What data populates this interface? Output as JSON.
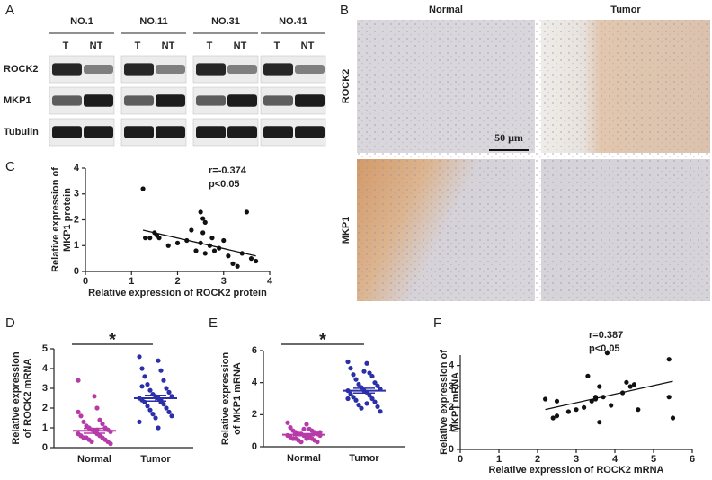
{
  "blot": {
    "label": "A",
    "samples": [
      "NO.1",
      "NO.11",
      "NO.31",
      "NO.41"
    ],
    "lanes": [
      "T",
      "NT"
    ],
    "rows": [
      "ROCK2",
      "MKP1",
      "Tubulin"
    ]
  },
  "histology": {
    "label": "B",
    "columns": [
      "Normal",
      "Tumor"
    ],
    "rows": [
      "ROCK2",
      "MKP1"
    ],
    "scale_bar": "50 μm"
  },
  "chart_data": [
    {
      "type": "scatter",
      "label": "C",
      "xlabel": "Relative expression of ROCK2 protein",
      "ylabel": [
        "Relative expression of",
        "MKP1 protein"
      ],
      "annotations": [
        "r=-0.374",
        "p<0.05"
      ],
      "xlim": [
        0,
        4
      ],
      "ylim": [
        0,
        4
      ],
      "xticks": [
        0,
        1,
        2,
        3,
        4
      ],
      "yticks": [
        0,
        1,
        2,
        3,
        4
      ],
      "color": "#111111",
      "x": [
        1.25,
        1.3,
        1.4,
        1.5,
        1.6,
        1.55,
        1.8,
        2.0,
        2.2,
        2.3,
        2.5,
        2.55,
        2.55,
        2.5,
        2.6,
        2.6,
        2.7,
        2.75,
        2.8,
        2.9,
        3.0,
        3.1,
        3.2,
        3.3,
        3.4,
        3.5,
        3.6,
        3.7,
        2.4
      ],
      "values": [
        3.2,
        1.3,
        1.3,
        1.5,
        1.3,
        1.4,
        1.0,
        1.1,
        1.2,
        1.6,
        2.3,
        2.05,
        1.5,
        1.1,
        1.9,
        0.7,
        1.0,
        1.3,
        0.8,
        0.9,
        1.2,
        0.6,
        0.3,
        0.2,
        0.7,
        2.3,
        0.5,
        0.4,
        0.8
      ],
      "fit": {
        "x": [
          1.25,
          3.7
        ],
        "y": [
          1.6,
          0.6
        ]
      }
    },
    {
      "type": "dot",
      "label": "D",
      "ylabel": [
        "Relative expression",
        "of ROCK2 mRNA"
      ],
      "significance": "*",
      "ylim": [
        0,
        5
      ],
      "yticks": [
        0,
        1,
        2,
        3,
        4,
        5
      ],
      "series": [
        {
          "name": "Normal",
          "color": "#b63aa8",
          "mean": 0.85,
          "sem": 0.12,
          "values": [
            3.4,
            2.0,
            1.6,
            1.4,
            1.3,
            1.2,
            1.1,
            1.0,
            1.0,
            0.9,
            0.9,
            0.8,
            0.8,
            0.7,
            0.7,
            0.6,
            0.6,
            0.5,
            0.5,
            0.5,
            0.4,
            0.4,
            0.3,
            0.3,
            0.2,
            2.6,
            1.8,
            0.9,
            0.6
          ]
        },
        {
          "name": "Tumor",
          "color": "#2b2fa8",
          "mean": 2.5,
          "sem": 0.15,
          "values": [
            4.6,
            4.4,
            4.0,
            3.9,
            3.6,
            3.4,
            3.2,
            3.0,
            2.9,
            2.8,
            2.7,
            2.6,
            2.6,
            2.5,
            2.5,
            2.4,
            2.4,
            2.3,
            2.2,
            2.1,
            2.0,
            1.9,
            1.8,
            1.7,
            1.6,
            1.5,
            1.3,
            1.0,
            3.1,
            2.3
          ]
        }
      ]
    },
    {
      "type": "dot",
      "label": "E",
      "ylabel": [
        "Relative expression",
        "of MKP1 mRNA"
      ],
      "significance": "*",
      "ylim": [
        0,
        6
      ],
      "yticks": [
        0,
        2,
        4,
        6
      ],
      "series": [
        {
          "name": "Normal",
          "color": "#b63aa8",
          "mean": 0.75,
          "sem": 0.06,
          "values": [
            1.5,
            1.4,
            1.2,
            1.1,
            1.0,
            1.0,
            0.9,
            0.9,
            0.8,
            0.8,
            0.8,
            0.7,
            0.7,
            0.7,
            0.6,
            0.6,
            0.6,
            0.5,
            0.5,
            0.5,
            0.4,
            0.4,
            0.3,
            0.3,
            0.9,
            1.1,
            0.7,
            0.5
          ]
        },
        {
          "name": "Tumor",
          "color": "#2b2fa8",
          "mean": 3.5,
          "sem": 0.15,
          "values": [
            5.3,
            5.2,
            4.9,
            4.6,
            4.5,
            4.4,
            4.2,
            4.0,
            3.9,
            3.8,
            3.7,
            3.6,
            3.5,
            3.5,
            3.4,
            3.3,
            3.2,
            3.1,
            3.0,
            2.9,
            2.8,
            2.6,
            2.5,
            2.4,
            2.2,
            4.7,
            3.0,
            2.7
          ]
        }
      ]
    },
    {
      "type": "scatter",
      "label": "F",
      "xlabel": "Relative expression of ROCK2 mRNA",
      "ylabel": [
        "Relative expression of",
        "MKP1 mRNA"
      ],
      "annotations": [
        "r=0.387",
        "p<0.05"
      ],
      "xlim": [
        0,
        6
      ],
      "ylim": [
        0,
        4.5
      ],
      "xticks": [
        0,
        1,
        2,
        3,
        4,
        5,
        6
      ],
      "yticks": [
        0,
        1,
        2,
        3,
        4
      ],
      "color": "#111111",
      "x": [
        2.2,
        2.4,
        2.5,
        2.5,
        2.8,
        3.0,
        3.2,
        3.3,
        3.4,
        3.5,
        3.5,
        3.6,
        3.6,
        3.7,
        3.8,
        3.9,
        4.2,
        4.3,
        4.4,
        4.5,
        4.6,
        5.4,
        5.4,
        5.5
      ],
      "values": [
        2.4,
        1.5,
        1.6,
        2.3,
        1.8,
        1.9,
        2.0,
        3.5,
        2.3,
        2.4,
        2.5,
        3.0,
        1.3,
        2.5,
        4.6,
        2.1,
        2.7,
        3.2,
        3.0,
        3.1,
        1.9,
        4.3,
        2.5,
        1.5
      ],
      "fit": {
        "x": [
          2.2,
          5.5
        ],
        "y": [
          1.9,
          3.25
        ]
      }
    }
  ]
}
